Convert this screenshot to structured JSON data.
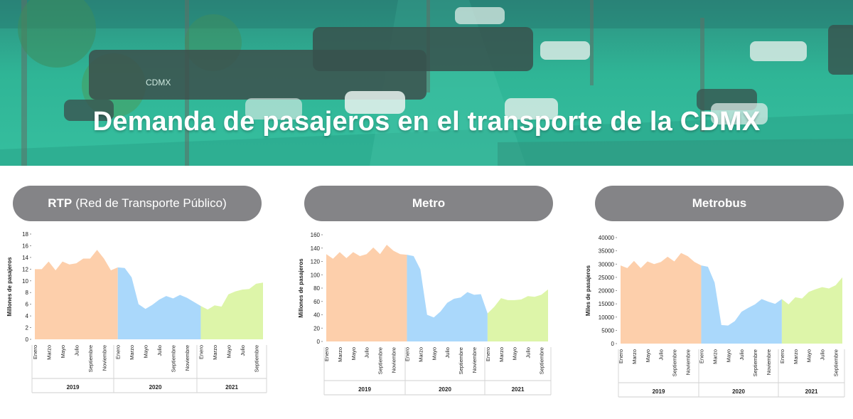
{
  "banner": {
    "title": "Demanda de pasajeros en el transporte de la CDMX",
    "bus_label": "CDMX"
  },
  "panels": [
    {
      "name": "RTP",
      "detail": "(Red de Transporte Público)"
    },
    {
      "name": "Metro",
      "detail": ""
    },
    {
      "name": "Metrobus",
      "detail": ""
    }
  ],
  "colors": {
    "banner_teal": "#2fb596",
    "title_pill": "#848487",
    "year_2019": "#fdcfab",
    "year_2020": "#aad8fb",
    "year_2021": "#ddf5a9"
  },
  "chart_data": [
    {
      "type": "area",
      "ylabel": "Millones de pasajeros",
      "ylim": [
        0,
        18
      ],
      "yticks": [
        0,
        2,
        4,
        6,
        8,
        10,
        12,
        14,
        16,
        18
      ],
      "month_tick_labels": [
        "Enero",
        "Marzo",
        "Mayo",
        "Julio",
        "Septiembre",
        "Noviembre"
      ],
      "years": [
        "2019",
        "2020",
        "2021"
      ],
      "series": [
        {
          "year": "2019",
          "values": [
            12.0,
            12.0,
            13.3,
            11.8,
            13.3,
            12.8,
            13.0,
            13.8,
            13.8,
            15.3,
            13.8,
            11.8
          ]
        },
        {
          "year": "2020",
          "values": [
            12.3,
            12.2,
            10.6,
            6.0,
            5.2,
            5.9,
            6.8,
            7.4,
            7.0,
            7.6,
            7.1,
            6.4
          ]
        },
        {
          "year": "2021",
          "values": [
            5.7,
            5.1,
            5.8,
            5.6,
            7.7,
            8.2,
            8.5,
            8.6,
            9.5,
            9.7
          ]
        }
      ]
    },
    {
      "type": "area",
      "ylabel": "Millones de pasajeros",
      "ylim": [
        0,
        160
      ],
      "yticks": [
        0,
        20,
        40,
        60,
        80,
        100,
        120,
        140,
        160
      ],
      "month_tick_labels": [
        "Enero",
        "Marzo",
        "Mayo",
        "Julio",
        "Septiembre",
        "Noviembre"
      ],
      "years": [
        "2019",
        "2020",
        "2021"
      ],
      "series": [
        {
          "year": "2019",
          "values": [
            131,
            124,
            134,
            125,
            134,
            128,
            131,
            141,
            131,
            145,
            136,
            131
          ]
        },
        {
          "year": "2020",
          "values": [
            130,
            128,
            108,
            40,
            36,
            45,
            58,
            64,
            66,
            74,
            70,
            71
          ]
        },
        {
          "year": "2021",
          "values": [
            42,
            52,
            65,
            62,
            62,
            63,
            68,
            67,
            70,
            78
          ]
        }
      ]
    },
    {
      "type": "area",
      "ylabel": "Miles de pasajeros",
      "ylim": [
        0,
        40000
      ],
      "yticks": [
        0,
        5000,
        10000,
        15000,
        20000,
        25000,
        30000,
        35000,
        40000
      ],
      "month_tick_labels": [
        "Enero",
        "Marzo",
        "Mayo",
        "Julio",
        "Septiembre",
        "Noviembre"
      ],
      "years": [
        "2019",
        "2020",
        "2021"
      ],
      "series": [
        {
          "year": "2019",
          "values": [
            29500,
            28500,
            31200,
            28500,
            31000,
            30000,
            30800,
            32800,
            31000,
            34200,
            33000,
            30800
          ]
        },
        {
          "year": "2020",
          "values": [
            29500,
            29000,
            23000,
            7000,
            6800,
            8500,
            12000,
            13500,
            14800,
            16800,
            15800,
            15000
          ]
        },
        {
          "year": "2021",
          "values": [
            16800,
            14800,
            17500,
            17000,
            19500,
            20500,
            21300,
            20800,
            22000,
            25000
          ]
        }
      ]
    }
  ]
}
